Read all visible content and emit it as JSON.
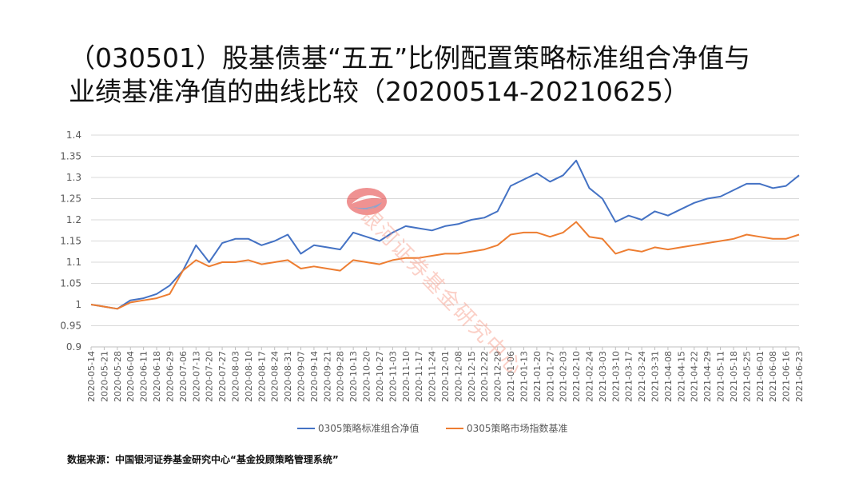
{
  "title_lines": [
    "（030501）股基债基“五五”比例配置策略标准组合净值与",
    "业绩基准净值的曲线比较（20200514-20210625）"
  ],
  "source": "数据来源：中国银河证券基金研究中心“基金投顾策略管理系统”",
  "watermark": {
    "text": "银河证券基金研究中心",
    "logo": "galaxy-securities-logo-icon"
  },
  "colors": {
    "series1": "#4472c4",
    "series2": "#ed7d31",
    "grid": "#d9d9d9",
    "axis_text": "#595959"
  },
  "chart_data": {
    "type": "line",
    "title": "",
    "xlabel": "",
    "ylabel": "",
    "ylim": [
      0.9,
      1.4
    ],
    "yticks": [
      "0.9",
      "0.95",
      "1",
      "1.05",
      "1.1",
      "1.15",
      "1.2",
      "1.25",
      "1.3",
      "1.35",
      "1.4"
    ],
    "grid": true,
    "legend_position": "bottom",
    "categories": [
      "2020-05-14",
      "2020-05-21",
      "2020-05-28",
      "2020-06-04",
      "2020-06-11",
      "2020-06-18",
      "2020-06-29",
      "2020-07-06",
      "2020-07-13",
      "2020-07-20",
      "2020-07-27",
      "2020-08-03",
      "2020-08-10",
      "2020-08-17",
      "2020-08-24",
      "2020-08-31",
      "2020-09-07",
      "2020-09-14",
      "2020-09-21",
      "2020-09-28",
      "2020-10-13",
      "2020-10-20",
      "2020-10-27",
      "2020-11-03",
      "2020-11-10",
      "2020-11-17",
      "2020-11-24",
      "2020-12-01",
      "2020-12-08",
      "2020-12-15",
      "2020-12-22",
      "2020-12-29",
      "2021-01-06",
      "2021-01-13",
      "2021-01-20",
      "2021-01-27",
      "2021-02-03",
      "2021-02-10",
      "2021-02-24",
      "2021-03-03",
      "2021-03-10",
      "2021-03-17",
      "2021-03-24",
      "2021-03-31",
      "2021-04-08",
      "2021-04-15",
      "2021-04-22",
      "2021-04-29",
      "2021-05-11",
      "2021-05-18",
      "2021-05-25",
      "2021-06-01",
      "2021-06-08",
      "2021-06-16",
      "2021-06-23"
    ],
    "series": [
      {
        "name": "0305策略标准组合净值",
        "values": [
          1.0,
          0.995,
          0.99,
          1.01,
          1.015,
          1.025,
          1.045,
          1.08,
          1.14,
          1.1,
          1.145,
          1.155,
          1.155,
          1.14,
          1.15,
          1.165,
          1.12,
          1.14,
          1.135,
          1.13,
          1.17,
          1.16,
          1.15,
          1.17,
          1.185,
          1.18,
          1.175,
          1.185,
          1.19,
          1.2,
          1.205,
          1.22,
          1.28,
          1.295,
          1.31,
          1.29,
          1.305,
          1.34,
          1.275,
          1.25,
          1.195,
          1.21,
          1.2,
          1.22,
          1.21,
          1.225,
          1.24,
          1.25,
          1.255,
          1.27,
          1.285,
          1.285,
          1.275,
          1.28,
          1.305
        ]
      },
      {
        "name": "0305策略市场指数基准",
        "values": [
          1.0,
          0.995,
          0.99,
          1.005,
          1.01,
          1.015,
          1.025,
          1.08,
          1.105,
          1.09,
          1.1,
          1.1,
          1.105,
          1.095,
          1.1,
          1.105,
          1.085,
          1.09,
          1.085,
          1.08,
          1.105,
          1.1,
          1.095,
          1.105,
          1.11,
          1.11,
          1.115,
          1.12,
          1.12,
          1.125,
          1.13,
          1.14,
          1.165,
          1.17,
          1.17,
          1.16,
          1.17,
          1.195,
          1.16,
          1.155,
          1.12,
          1.13,
          1.125,
          1.135,
          1.13,
          1.135,
          1.14,
          1.145,
          1.15,
          1.155,
          1.165,
          1.16,
          1.155,
          1.155,
          1.165
        ]
      }
    ]
  }
}
